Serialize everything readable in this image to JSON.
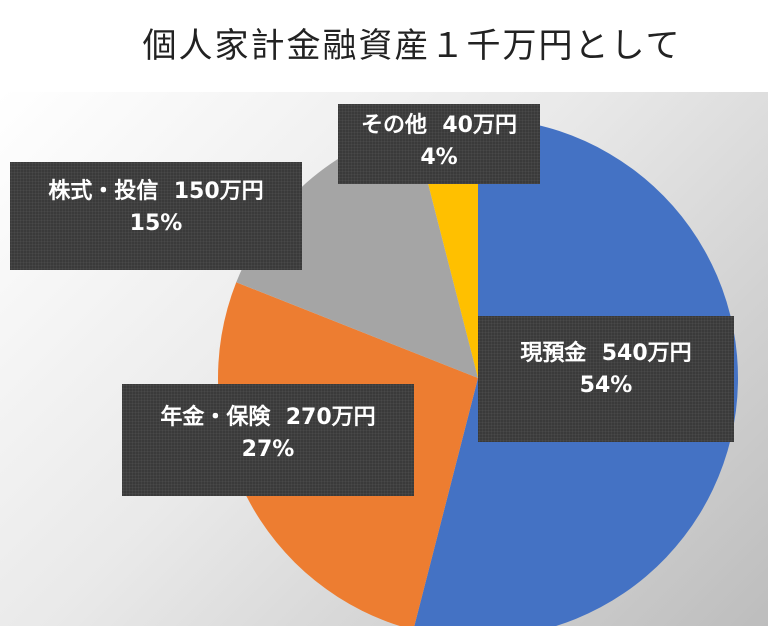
{
  "chart_data": {
    "type": "pie",
    "title": "個人家計金融資産１千万円として",
    "start_angle_deg": 0,
    "direction": "clockwise",
    "slices": [
      {
        "name": "現預金",
        "value": 540,
        "value_label": "540万円",
        "percent_label": "54%",
        "color": "#4472C4"
      },
      {
        "name": "年金・保険",
        "value": 270,
        "value_label": "270万円",
        "percent_label": "27%",
        "color": "#ED7D31"
      },
      {
        "name": "株式・投信",
        "value": 150,
        "value_label": "150万円",
        "percent_label": "15%",
        "color": "#A5A5A5"
      },
      {
        "name": "その他",
        "value": 40,
        "value_label": "40万円",
        "percent_label": "4%",
        "color": "#FFC000"
      }
    ]
  },
  "labels": {
    "cash": {
      "name": "現預金",
      "amount": "540万円",
      "percent": "54%"
    },
    "pension": {
      "name": "年金・保険",
      "amount": "270万円",
      "percent": "27%"
    },
    "stocks": {
      "name": "株式・投信",
      "amount": "150万円",
      "percent": "15%"
    },
    "other": {
      "name": "その他",
      "amount": "40万円",
      "percent": "4%"
    }
  }
}
